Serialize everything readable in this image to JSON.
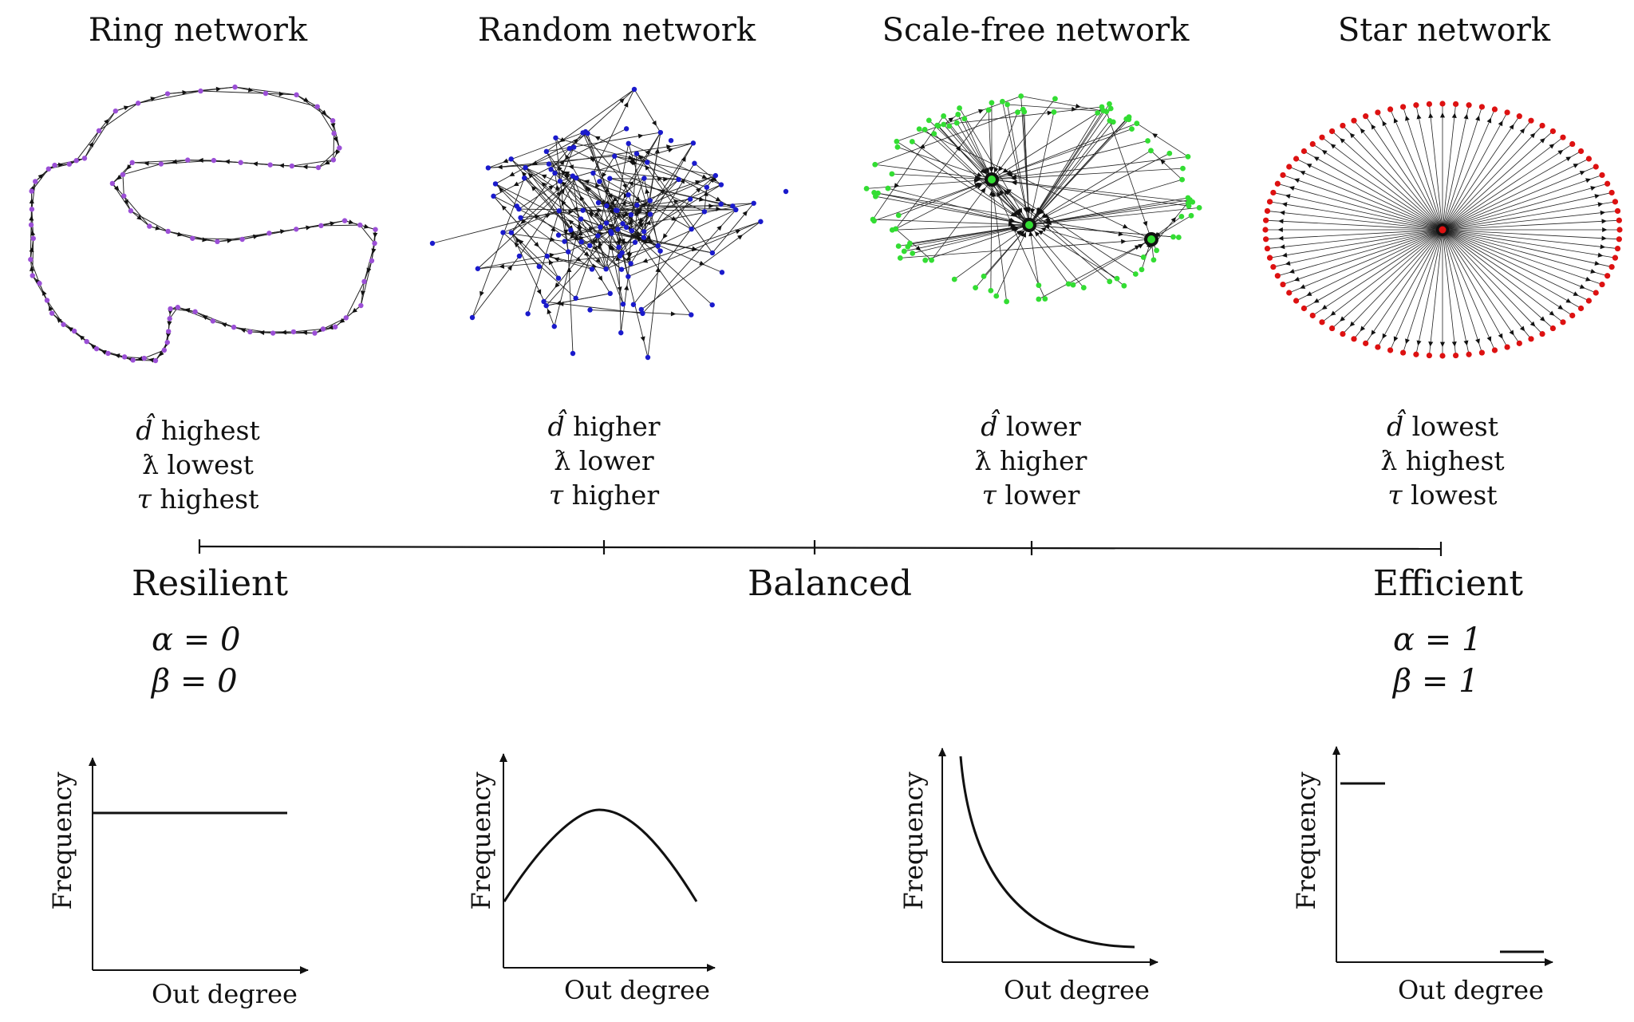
{
  "networks": [
    {
      "title": "Ring network",
      "color": "#9b4fd6",
      "d": "highest",
      "lambda": "lowest",
      "tau": "highest"
    },
    {
      "title": "Random network",
      "color": "#1a1acc",
      "d": "higher",
      "lambda": "lower",
      "tau": "higher"
    },
    {
      "title": "Scale-free network",
      "color": "#33dd33",
      "d": "lower",
      "lambda": "higher",
      "tau": "lower"
    },
    {
      "title": "Star network",
      "color": "#dd1111",
      "d": "lowest",
      "lambda": "highest",
      "tau": "lowest"
    }
  ],
  "symbols": {
    "d": "d̂",
    "lambda": "ƛ",
    "tau": "τ"
  },
  "spectrum": {
    "left": "Resilient",
    "middle": "Balanced",
    "right": "Efficient"
  },
  "params": {
    "left": {
      "alpha": "α = 0",
      "beta": "β = 0"
    },
    "right": {
      "alpha": "α = 1",
      "beta": "β = 1"
    }
  },
  "distribution_plots": [
    {
      "ylabel": "Frequency",
      "xlabel": "Out degree",
      "shape": "flat"
    },
    {
      "ylabel": "Frequency",
      "xlabel": "Out degree",
      "shape": "bell"
    },
    {
      "ylabel": "Frequency",
      "xlabel": "Out degree",
      "shape": "power-law decay"
    },
    {
      "ylabel": "Frequency",
      "xlabel": "Out degree",
      "shape": "two steps (high at low degree, low at high degree)"
    }
  ]
}
